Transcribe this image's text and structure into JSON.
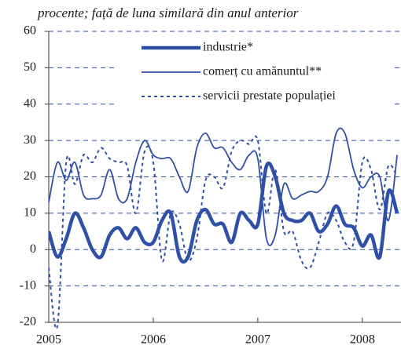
{
  "chart_data": {
    "type": "line",
    "title": "procente; față de luna similară din anul anterior",
    "x": [
      2005,
      2005.083,
      2005.167,
      2005.25,
      2005.333,
      2005.417,
      2005.5,
      2005.583,
      2005.667,
      2005.75,
      2005.833,
      2005.917,
      2006,
      2006.083,
      2006.167,
      2006.25,
      2006.333,
      2006.417,
      2006.5,
      2006.583,
      2006.667,
      2006.75,
      2006.833,
      2006.917,
      2007,
      2007.083,
      2007.167,
      2007.25,
      2007.333,
      2007.417,
      2007.5,
      2007.583,
      2007.667,
      2007.75,
      2007.833,
      2007.917,
      2008,
      2008.083,
      2008.167,
      2008.25,
      2008.333
    ],
    "xlim": [
      2005,
      2008.37
    ],
    "xticks": [
      2005,
      2006,
      2007,
      2008
    ],
    "ylim": [
      -20,
      60
    ],
    "yticks": [
      -20,
      -10,
      0,
      10,
      20,
      30,
      40,
      50,
      60
    ],
    "grid": true,
    "legend": "upper center",
    "series": [
      {
        "name": "industrie*",
        "color": "#3050a8",
        "linewidth": 4.5,
        "linestyle": "solid",
        "values": [
          5,
          -2,
          3,
          10,
          6,
          0,
          -2,
          4,
          6,
          3,
          6,
          2,
          2,
          8,
          10,
          -2,
          -2,
          8,
          11,
          7,
          7,
          2,
          10,
          8,
          7,
          23,
          20,
          10,
          8,
          8,
          10,
          5,
          7,
          12,
          7,
          6,
          1,
          4,
          -2,
          16,
          10
        ]
      },
      {
        "name": "comerț cu amănuntul**",
        "color": "#3050a8",
        "linewidth": 1.8,
        "linestyle": "solid",
        "values": [
          13,
          24,
          19,
          24,
          15,
          14,
          15,
          22,
          14,
          14,
          24,
          30,
          26,
          25,
          25,
          20,
          16,
          28,
          32,
          28,
          28,
          24,
          22,
          26,
          25,
          3,
          4,
          18,
          14,
          15,
          16,
          16,
          20,
          32,
          32,
          22,
          17,
          20,
          20,
          8,
          26
        ]
      },
      {
        "name": "servicii prestate populației",
        "color": "#3050a8",
        "linewidth": 2,
        "linestyle": "dotted",
        "values": [
          -5,
          -21,
          24,
          18,
          26,
          24,
          28,
          25,
          24,
          23,
          10,
          27,
          24,
          -3,
          10,
          7,
          -3,
          3,
          19,
          20,
          17,
          27,
          30,
          29,
          30,
          10,
          22,
          5,
          5,
          -3,
          -5,
          2,
          10,
          8,
          2,
          2,
          24,
          22,
          11,
          23,
          20
        ]
      }
    ]
  }
}
